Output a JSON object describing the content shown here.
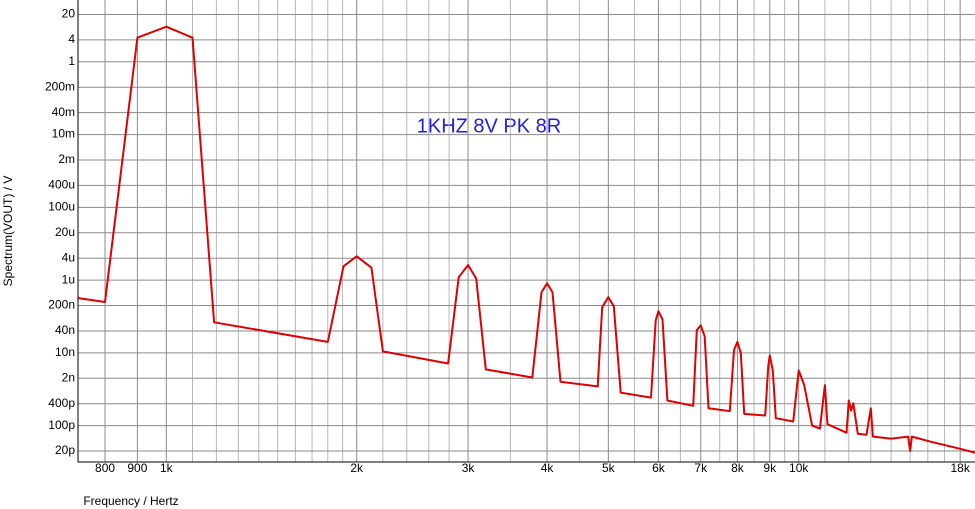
{
  "chart_data": {
    "type": "line",
    "annotation": "1KHZ 8V PK 8R",
    "xlabel": "Frequency / Hertz",
    "ylabel": "Spectrum(VOUT) / V",
    "log_x": true,
    "log_y": true,
    "grid": true,
    "xlim": [
      725,
      19000
    ],
    "ylim": [
      1e-11,
      50
    ],
    "xticks": [
      {
        "value": 800,
        "label": "800"
      },
      {
        "value": 900,
        "label": "900"
      },
      {
        "value": 1000,
        "label": "1k"
      },
      {
        "value": 2000,
        "label": "2k"
      },
      {
        "value": 3000,
        "label": "3k"
      },
      {
        "value": 4000,
        "label": "4k"
      },
      {
        "value": 5000,
        "label": "5k"
      },
      {
        "value": 6000,
        "label": "6k"
      },
      {
        "value": 7000,
        "label": "7k"
      },
      {
        "value": 8000,
        "label": "8k"
      },
      {
        "value": 9000,
        "label": "9k"
      },
      {
        "value": 10000,
        "label": "10k"
      },
      {
        "value": 18000,
        "label": "18k"
      }
    ],
    "xminor": [
      1100,
      1200,
      1300,
      1400,
      1500,
      1600,
      1700,
      1800,
      1900,
      2200,
      2400,
      2600,
      2800,
      3500,
      4500,
      5500,
      6500,
      7500,
      8500,
      9500,
      11000,
      12000,
      13000,
      14000,
      15000,
      16000,
      17000
    ],
    "yticks": [
      20,
      4,
      1,
      {
        "value": 0.2,
        "label": "200m"
      },
      {
        "value": 0.04,
        "label": "40m"
      },
      {
        "value": 0.01,
        "label": "10m"
      },
      {
        "value": 0.002,
        "label": "2m"
      },
      {
        "value": 0.0004,
        "label": "400u"
      },
      {
        "value": 0.0001,
        "label": "100u"
      },
      {
        "value": 2e-05,
        "label": "20u"
      },
      {
        "value": 4e-06,
        "label": "4u"
      },
      {
        "value": 1e-06,
        "label": "1u"
      },
      {
        "value": 2e-07,
        "label": "200n"
      },
      {
        "value": 4e-08,
        "label": "40n"
      },
      {
        "value": 1e-08,
        "label": "10n"
      },
      {
        "value": 2e-09,
        "label": "2n"
      },
      {
        "value": 4e-10,
        "label": "400p"
      },
      {
        "value": 1e-10,
        "label": "100p"
      },
      {
        "value": 2e-11,
        "label": "20p"
      }
    ],
    "series": [
      {
        "color": "#e00000",
        "x": [
          726,
          800,
          900,
          1000,
          1100,
          1190,
          1800,
          1906,
          2000,
          2110,
          2200,
          2790,
          2900,
          3000,
          3090,
          3200,
          3790,
          3920,
          4000,
          4080,
          4200,
          4810,
          4890,
          5000,
          5100,
          5230,
          5840,
          5940,
          6000,
          6090,
          6200,
          6810,
          6900,
          7000,
          7100,
          7200,
          7780,
          7900,
          8000,
          8100,
          8200,
          8850,
          8950,
          9000,
          9100,
          9200,
          9800,
          10000,
          10200,
          10500,
          10800,
          11000,
          11100,
          11900,
          12000,
          12100,
          12200,
          12400,
          12800,
          13000,
          13100,
          14000,
          14900,
          15000,
          15100,
          16200,
          18000,
          19000
        ],
        "values": [
          3.2e-07,
          2.5e-07,
          4.6,
          9.2,
          4.6,
          6.9e-08,
          2e-08,
          2.4e-06,
          4.5e-06,
          2.2e-06,
          1.1e-08,
          5.1e-09,
          1.2e-06,
          2.6e-06,
          1.1e-06,
          3.5e-09,
          2.1e-09,
          4.6e-07,
          8.2e-07,
          4.6e-07,
          1.6e-09,
          1.2e-09,
          1.8e-07,
          3.4e-07,
          1.9e-07,
          8.1e-10,
          5.9e-10,
          7.8e-08,
          1.4e-07,
          8.3e-08,
          4.9e-10,
          3.5e-10,
          4.2e-08,
          5.7e-08,
          2.8e-08,
          3e-10,
          2.5e-10,
          1.2e-08,
          2e-08,
          1e-08,
          2.1e-10,
          1.9e-10,
          4.5e-09,
          8.5e-09,
          3.3e-09,
          1.6e-10,
          1.3e-10,
          3.3e-09,
          1.3e-09,
          1e-10,
          8.3e-11,
          1.3e-09,
          1.1e-10,
          6.4e-11,
          4.9e-10,
          2.6e-10,
          4.1e-10,
          6e-11,
          5.6e-11,
          3e-10,
          5e-11,
          4.4e-11,
          5e-11,
          2e-11,
          5e-11,
          3.6e-11,
          2.3e-11,
          1.8e-11
        ]
      }
    ]
  }
}
